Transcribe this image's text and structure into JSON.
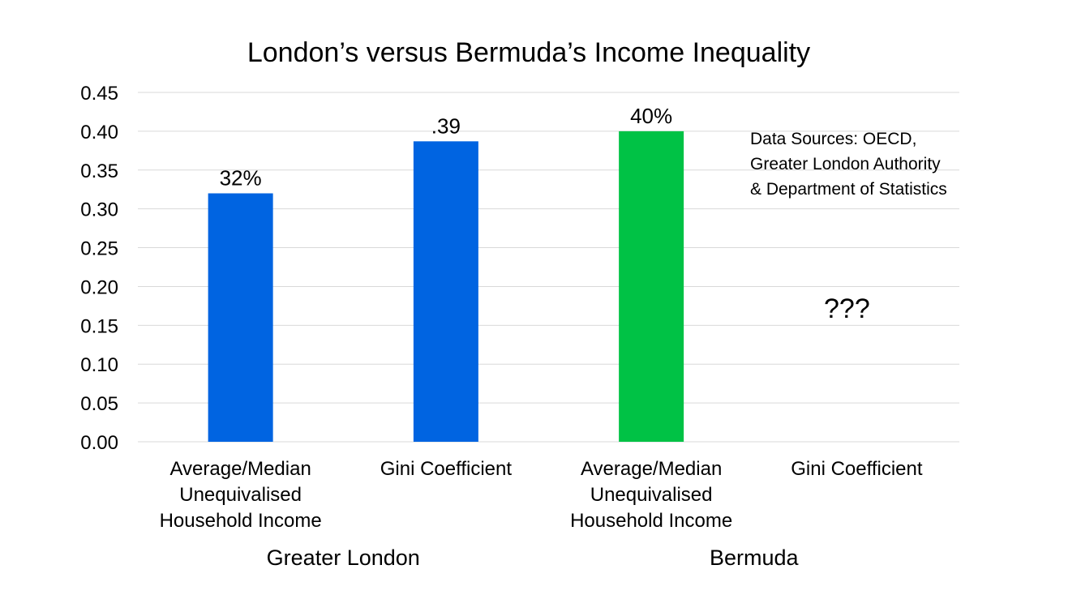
{
  "chart_data": {
    "type": "bar",
    "title": "London’s versus Bermuda’s Income Inequality",
    "xlabel": "",
    "ylabel": "",
    "ylim": [
      0,
      0.45
    ],
    "yticks": [
      "0.00",
      "0.05",
      "0.10",
      "0.15",
      "0.20",
      "0.25",
      "0.30",
      "0.35",
      "0.40",
      "0.45"
    ],
    "grid": true,
    "legend": "none",
    "categories": [
      [
        "Average/Median",
        "Unequivalised",
        "Household Income"
      ],
      [
        "Gini Coefficient"
      ],
      [
        "Average/Median",
        "Unequivalised",
        "Household Income"
      ],
      [
        "Gini Coefficient"
      ]
    ],
    "groups": [
      "Greater London",
      "Bermuda"
    ],
    "values": [
      0.32,
      0.387,
      0.4,
      null
    ],
    "data_labels": [
      "32%",
      ".39",
      "40%",
      "???"
    ],
    "colors": [
      "#0064e1",
      "#0064e1",
      "#00c245",
      null
    ],
    "annotation": [
      "Data Sources: OECD,",
      "Greater London Authority",
      "& Department of Statistics"
    ]
  }
}
